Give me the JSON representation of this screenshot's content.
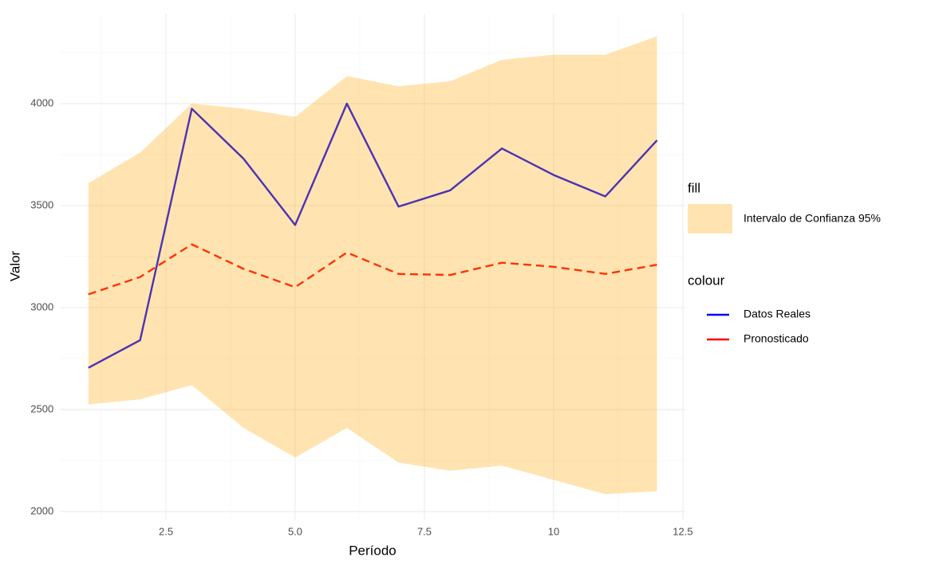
{
  "chart_data": {
    "type": "line",
    "x_label": "Período",
    "y_label": "Valor",
    "x": [
      1,
      2,
      3,
      4,
      5,
      6,
      7,
      8,
      9,
      10,
      11,
      12
    ],
    "xlim": [
      0.45,
      12.55
    ],
    "ylim": [
      1960,
      4440
    ],
    "xticks": [
      2.5,
      {
        "value": 5,
        "label": "5.0"
      },
      7.5,
      10.0,
      12.5
    ],
    "yticks": [
      2000,
      2500,
      3000,
      3500,
      4000
    ],
    "xminorticks": [
      1.25,
      3.75,
      6.25,
      8.75,
      11.25
    ],
    "yminorticks": [
      2250,
      2750,
      3250,
      3750,
      4250
    ],
    "grid": true,
    "series": [
      {
        "name": "Datos Reales",
        "color": "#0000ff",
        "dash": false,
        "values": [
          2705,
          2840,
          3975,
          3730,
          3405,
          4000,
          3495,
          3575,
          3780,
          3650,
          3545,
          3820
        ]
      },
      {
        "name": "Pronosticado",
        "color": "#ff0000",
        "dash": true,
        "values": [
          3065,
          3150,
          3310,
          3190,
          3100,
          3270,
          3165,
          3160,
          3220,
          3200,
          3165,
          3210
        ]
      }
    ],
    "ribbon": {
      "name": "Intervalo de Confianza 95%",
      "color": "#ffa500",
      "opacity": 0.3,
      "lower": [
        2525,
        2550,
        2620,
        2410,
        2265,
        2410,
        2240,
        2200,
        2225,
        2155,
        2085,
        2100
      ],
      "upper": [
        3610,
        3760,
        4000,
        3975,
        3935,
        4135,
        4085,
        4110,
        4215,
        4240,
        4240,
        4330
      ]
    },
    "legend_fill_title": "fill",
    "legend_colour_title": "colour",
    "legend_position": "right"
  }
}
